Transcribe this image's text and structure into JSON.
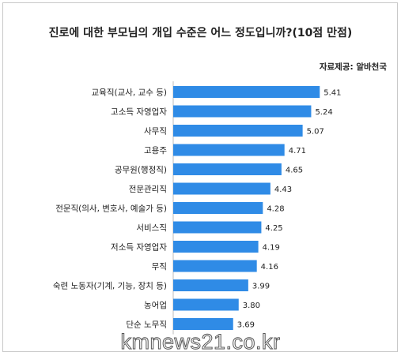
{
  "chart_data": {
    "type": "bar",
    "orientation": "horizontal",
    "title": "진로에 대한 부모님의 개입 수준은 어느 정도입니까?(10점  만점)",
    "source": "자료제공: 알바천국",
    "categories": [
      "교육직(교사, 교수 등)",
      "고소득 자영업자",
      "사무직",
      "고용주",
      "공무원(행정직)",
      "전문관리직",
      "전문직(의사, 변호사, 예술가 등)",
      "서비스직",
      "저소득 자영업자",
      "무직",
      "숙련 노동자(기계, 기능, 장치 등)",
      "농어업",
      "단순 노무직"
    ],
    "values": [
      5.41,
      5.24,
      5.07,
      4.71,
      4.65,
      4.43,
      4.28,
      4.25,
      4.19,
      4.16,
      3.99,
      3.8,
      3.69
    ],
    "value_labels": [
      "5.41",
      "5.24",
      "5.07",
      "4.71",
      "4.65",
      "4.43",
      "4.28",
      "4.25",
      "4.19",
      "4.16",
      "3.99",
      "3.80",
      "3.69"
    ],
    "xlim": [
      2.5,
      5.5
    ],
    "bar_color": "#2f8be6",
    "grid": false,
    "legend": "none"
  },
  "watermark": "kmnews21.co.kr"
}
